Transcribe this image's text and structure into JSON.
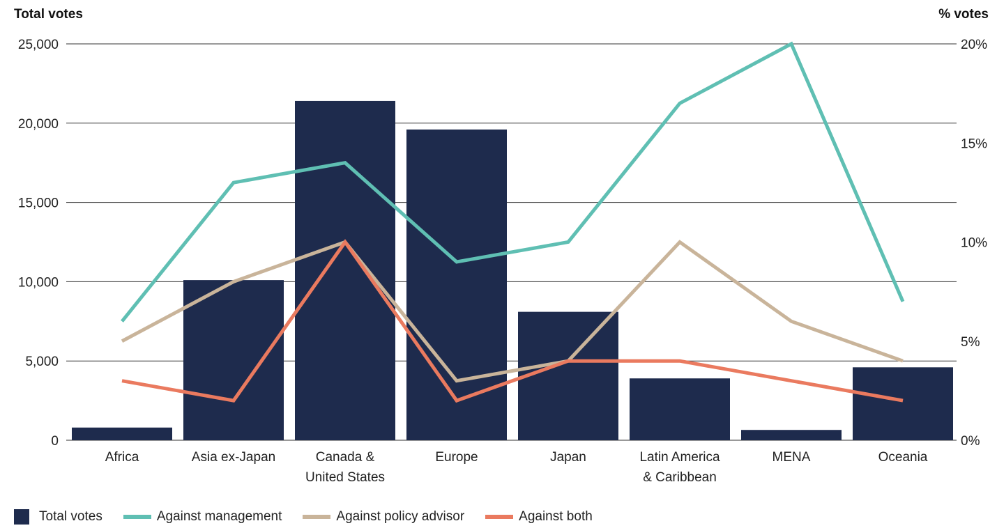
{
  "chart_data": {
    "type": "bar+line",
    "left_axis_title": "Total votes",
    "right_axis_title": "% votes",
    "left_ticks": [
      "25,000",
      "20,000",
      "15,000",
      "10,000",
      "5,000",
      "0"
    ],
    "right_ticks": [
      "20%",
      "15%",
      "10%",
      "5%",
      "0%"
    ],
    "left_ylim": [
      0,
      25000
    ],
    "right_ylim": [
      0,
      20
    ],
    "categories": [
      [
        "Africa"
      ],
      [
        "Asia ex-Japan"
      ],
      [
        "Canada &",
        "United States"
      ],
      [
        "Europe"
      ],
      [
        "Japan"
      ],
      [
        "Latin America",
        "& Caribbean"
      ],
      [
        "MENA"
      ],
      [
        "Oceania"
      ]
    ],
    "bars": {
      "name": "Total votes",
      "color": "#1e2b4d",
      "values": [
        800,
        10100,
        21400,
        19600,
        8100,
        3900,
        650,
        4600
      ]
    },
    "lines": [
      {
        "name": "Against management",
        "color": "#5fbfb3",
        "values": [
          6,
          13,
          14,
          9,
          10,
          17,
          20,
          7
        ]
      },
      {
        "name": "Against policy advisor",
        "color": "#c9b49a",
        "values": [
          5,
          8,
          10,
          3,
          4,
          10,
          6,
          4
        ]
      },
      {
        "name": "Against both",
        "color": "#ea7a5f",
        "values": [
          3,
          2,
          10,
          2,
          4,
          4,
          3,
          2
        ]
      }
    ],
    "grid": true,
    "legend_position": "bottom-left"
  }
}
